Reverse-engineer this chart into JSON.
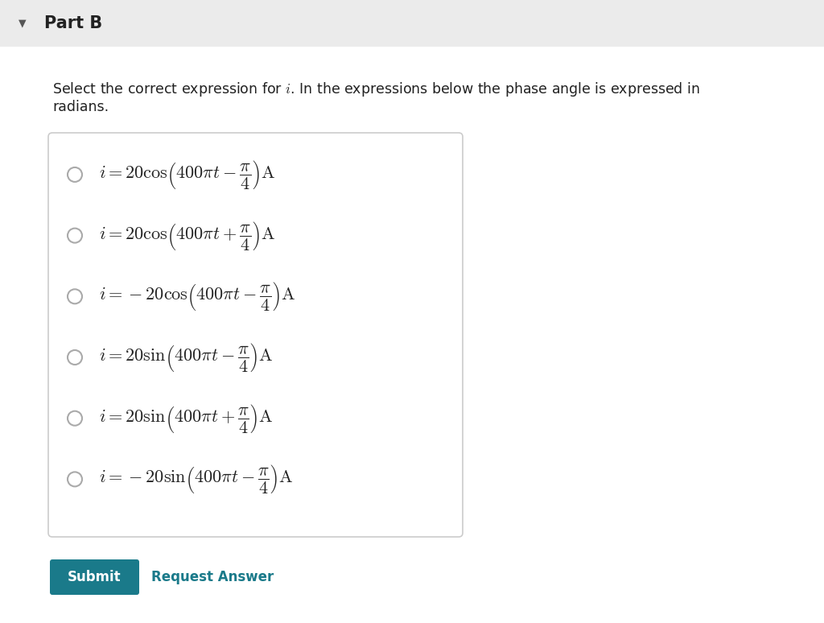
{
  "title": "Part B",
  "header_bg": "#ebebeb",
  "body_bg": "#ffffff",
  "box_border": "#cccccc",
  "submit_bg": "#1a7a8a",
  "submit_text": "Submit",
  "request_text": "Request Answer",
  "request_color": "#1a7a8a",
  "triangle_color": "#555555",
  "radio_color": "#aaaaaa",
  "title_fontsize": 15,
  "desc_fontsize": 12.5,
  "option_fontsize": 16,
  "fig_width": 10.24,
  "fig_height": 7.74
}
